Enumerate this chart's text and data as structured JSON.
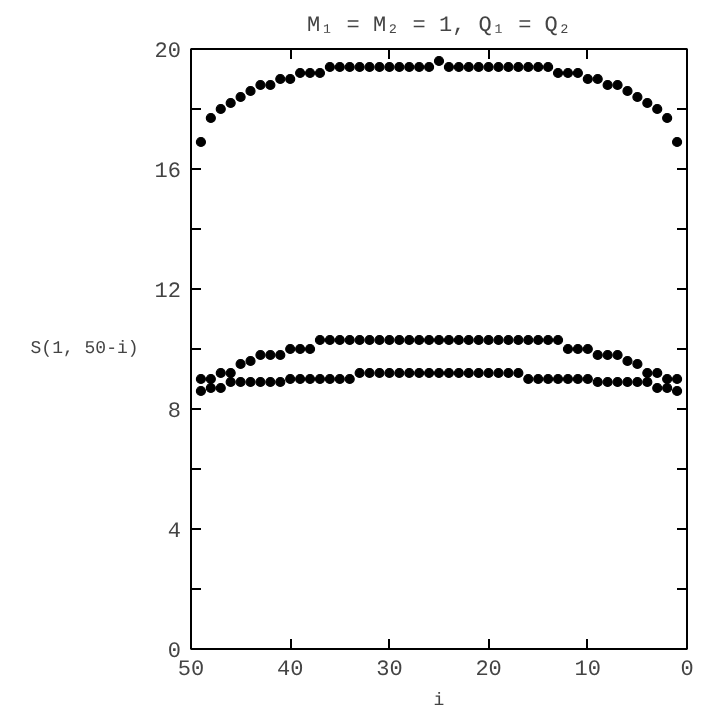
{
  "chart_data": {
    "type": "scatter",
    "title": "M₁ = M₂ = 1, Q₁ = Q₂",
    "xlabel": "i",
    "ylabel": "S(1, 50-i)",
    "x": [
      49,
      48,
      47,
      46,
      45,
      44,
      43,
      42,
      41,
      40,
      39,
      38,
      37,
      36,
      35,
      34,
      33,
      32,
      31,
      30,
      29,
      28,
      27,
      26,
      25,
      24,
      23,
      22,
      21,
      20,
      19,
      18,
      17,
      16,
      15,
      14,
      13,
      12,
      11,
      10,
      9,
      8,
      7,
      6,
      5,
      4,
      3,
      2,
      1
    ],
    "series": [
      {
        "color": "#000000",
        "values": [
          16.9,
          17.7,
          18.0,
          18.2,
          18.4,
          18.6,
          18.8,
          18.8,
          19.0,
          19.0,
          19.2,
          19.2,
          19.2,
          19.4,
          19.4,
          19.4,
          19.4,
          19.4,
          19.4,
          19.4,
          19.4,
          19.4,
          19.4,
          19.4,
          19.6,
          19.4,
          19.4,
          19.4,
          19.4,
          19.4,
          19.4,
          19.4,
          19.4,
          19.4,
          19.4,
          19.4,
          19.2,
          19.2,
          19.2,
          19.0,
          19.0,
          18.8,
          18.8,
          18.6,
          18.4,
          18.2,
          18.0,
          17.7,
          16.9
        ]
      },
      {
        "color": "#000000",
        "values": [
          9.0,
          9.0,
          9.2,
          9.2,
          9.5,
          9.6,
          9.8,
          9.8,
          9.8,
          10.0,
          10.0,
          10.0,
          10.3,
          10.3,
          10.3,
          10.3,
          10.3,
          10.3,
          10.3,
          10.3,
          10.3,
          10.3,
          10.3,
          10.3,
          10.3,
          10.3,
          10.3,
          10.3,
          10.3,
          10.3,
          10.3,
          10.3,
          10.3,
          10.3,
          10.3,
          10.3,
          10.3,
          10.0,
          10.0,
          10.0,
          9.8,
          9.8,
          9.8,
          9.6,
          9.5,
          9.2,
          9.2,
          9.0,
          9.0
        ]
      },
      {
        "color": "#000000",
        "values": [
          8.6,
          8.7,
          8.7,
          8.9,
          8.9,
          8.9,
          8.9,
          8.9,
          8.9,
          9.0,
          9.0,
          9.0,
          9.0,
          9.0,
          9.0,
          9.0,
          9.2,
          9.2,
          9.2,
          9.2,
          9.2,
          9.2,
          9.2,
          9.2,
          9.2,
          9.2,
          9.2,
          9.2,
          9.2,
          9.2,
          9.2,
          9.2,
          9.2,
          9.0,
          9.0,
          9.0,
          9.0,
          9.0,
          9.0,
          9.0,
          8.9,
          8.9,
          8.9,
          8.9,
          8.9,
          8.9,
          8.7,
          8.7,
          8.6
        ]
      }
    ],
    "marker": "circle",
    "xlim": [
      50,
      0
    ],
    "ylim": [
      0,
      20
    ],
    "xticks": [
      50,
      40,
      30,
      20,
      10,
      0
    ],
    "yticks": [
      0,
      {
        "value": 2,
        "label": null
      },
      4,
      {
        "value": 6,
        "label": null
      },
      8,
      {
        "value": 10,
        "label": null
      },
      12,
      {
        "value": 14,
        "label": null
      },
      16,
      {
        "value": 18,
        "label": null
      },
      20
    ],
    "grid": false
  }
}
